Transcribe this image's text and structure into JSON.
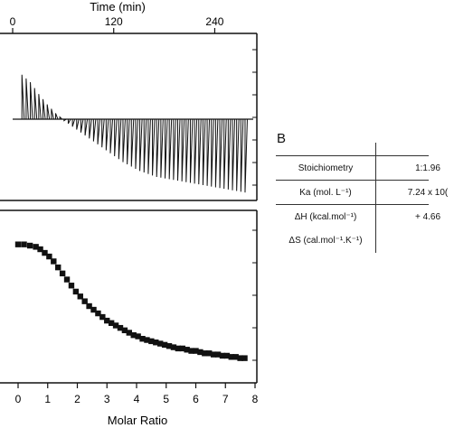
{
  "chart_data": [
    {
      "type": "line",
      "panel": "thermogram",
      "xlabel": "Time (min)",
      "xticks": [
        0,
        120,
        240
      ],
      "xlim": [
        0,
        290
      ],
      "grid": false,
      "peaks": [
        {
          "t": 11,
          "h": 0.6
        },
        {
          "t": 16,
          "h": 0.55
        },
        {
          "t": 21,
          "h": 0.5
        },
        {
          "t": 26,
          "h": 0.42
        },
        {
          "t": 31,
          "h": 0.34
        },
        {
          "t": 36,
          "h": 0.27
        },
        {
          "t": 41,
          "h": 0.2
        },
        {
          "t": 46,
          "h": 0.14
        },
        {
          "t": 51,
          "h": 0.08
        },
        {
          "t": 56,
          "h": 0.03
        },
        {
          "t": 61,
          "h": -0.02
        },
        {
          "t": 66,
          "h": -0.06
        },
        {
          "t": 71,
          "h": -0.1
        },
        {
          "t": 76,
          "h": -0.14
        },
        {
          "t": 81,
          "h": -0.18
        },
        {
          "t": 86,
          "h": -0.22
        },
        {
          "t": 91,
          "h": -0.26
        },
        {
          "t": 96,
          "h": -0.3
        },
        {
          "t": 101,
          "h": -0.34
        },
        {
          "t": 106,
          "h": -0.38
        },
        {
          "t": 111,
          "h": -0.42
        },
        {
          "t": 116,
          "h": -0.46
        },
        {
          "t": 121,
          "h": -0.5
        },
        {
          "t": 126,
          "h": -0.54
        },
        {
          "t": 131,
          "h": -0.58
        },
        {
          "t": 136,
          "h": -0.61
        },
        {
          "t": 141,
          "h": -0.64
        },
        {
          "t": 146,
          "h": -0.67
        },
        {
          "t": 151,
          "h": -0.7
        },
        {
          "t": 156,
          "h": -0.72
        },
        {
          "t": 161,
          "h": -0.74
        },
        {
          "t": 166,
          "h": -0.76
        },
        {
          "t": 171,
          "h": -0.78
        },
        {
          "t": 176,
          "h": -0.79
        },
        {
          "t": 181,
          "h": -0.8
        },
        {
          "t": 186,
          "h": -0.81
        },
        {
          "t": 191,
          "h": -0.82
        },
        {
          "t": 196,
          "h": -0.83
        },
        {
          "t": 201,
          "h": -0.84
        },
        {
          "t": 206,
          "h": -0.85
        },
        {
          "t": 211,
          "h": -0.86
        },
        {
          "t": 216,
          "h": -0.87
        },
        {
          "t": 221,
          "h": -0.88
        },
        {
          "t": 226,
          "h": -0.89
        },
        {
          "t": 231,
          "h": -0.9
        },
        {
          "t": 236,
          "h": -0.91
        },
        {
          "t": 241,
          "h": -0.92
        },
        {
          "t": 246,
          "h": -0.93
        },
        {
          "t": 251,
          "h": -0.94
        },
        {
          "t": 256,
          "h": -0.95
        },
        {
          "t": 261,
          "h": -0.96
        },
        {
          "t": 266,
          "h": -0.97
        },
        {
          "t": 271,
          "h": -0.98
        },
        {
          "t": 276,
          "h": -0.99
        }
      ]
    },
    {
      "type": "scatter",
      "panel": "binding isotherm",
      "xlabel": "Molar Ratio",
      "xticks": [
        0,
        1,
        2,
        3,
        4,
        5,
        6,
        7,
        8
      ],
      "xlim": [
        -0.1,
        8
      ],
      "ylim": [
        0,
        1
      ],
      "grid": false,
      "x": [
        0.0,
        0.2,
        0.4,
        0.6,
        0.75,
        0.9,
        1.05,
        1.2,
        1.35,
        1.5,
        1.65,
        1.8,
        1.95,
        2.1,
        2.25,
        2.4,
        2.55,
        2.7,
        2.85,
        3.0,
        3.15,
        3.3,
        3.45,
        3.6,
        3.75,
        3.9,
        4.05,
        4.2,
        4.35,
        4.5,
        4.65,
        4.8,
        4.95,
        5.1,
        5.25,
        5.4,
        5.55,
        5.7,
        5.85,
        6.0,
        6.15,
        6.3,
        6.45,
        6.6,
        6.75,
        6.9,
        7.05,
        7.2,
        7.35,
        7.5,
        7.65
      ],
      "y": [
        0.98,
        0.98,
        0.97,
        0.96,
        0.94,
        0.91,
        0.88,
        0.84,
        0.79,
        0.74,
        0.69,
        0.64,
        0.59,
        0.55,
        0.51,
        0.47,
        0.44,
        0.41,
        0.38,
        0.35,
        0.33,
        0.31,
        0.29,
        0.27,
        0.25,
        0.23,
        0.22,
        0.2,
        0.19,
        0.18,
        0.17,
        0.16,
        0.15,
        0.14,
        0.13,
        0.12,
        0.12,
        0.11,
        0.1,
        0.1,
        0.09,
        0.08,
        0.08,
        0.07,
        0.07,
        0.06,
        0.06,
        0.05,
        0.05,
        0.04,
        0.04
      ]
    },
    {
      "type": "table",
      "panel_label": "B",
      "rows": [
        {
          "label": "Stoichiometry",
          "value": "1:1.96"
        },
        {
          "label": "Ka (mol. L⁻¹)",
          "value": "7.24 x 10("
        },
        {
          "label": "ΔH (kcal.mol⁻¹)",
          "value": "+ 4.66"
        },
        {
          "label": "ΔS (cal.mol⁻¹.K⁻¹)",
          "value": ""
        }
      ]
    }
  ],
  "colors": {
    "ink": "#111111",
    "background": "#ffffff"
  }
}
